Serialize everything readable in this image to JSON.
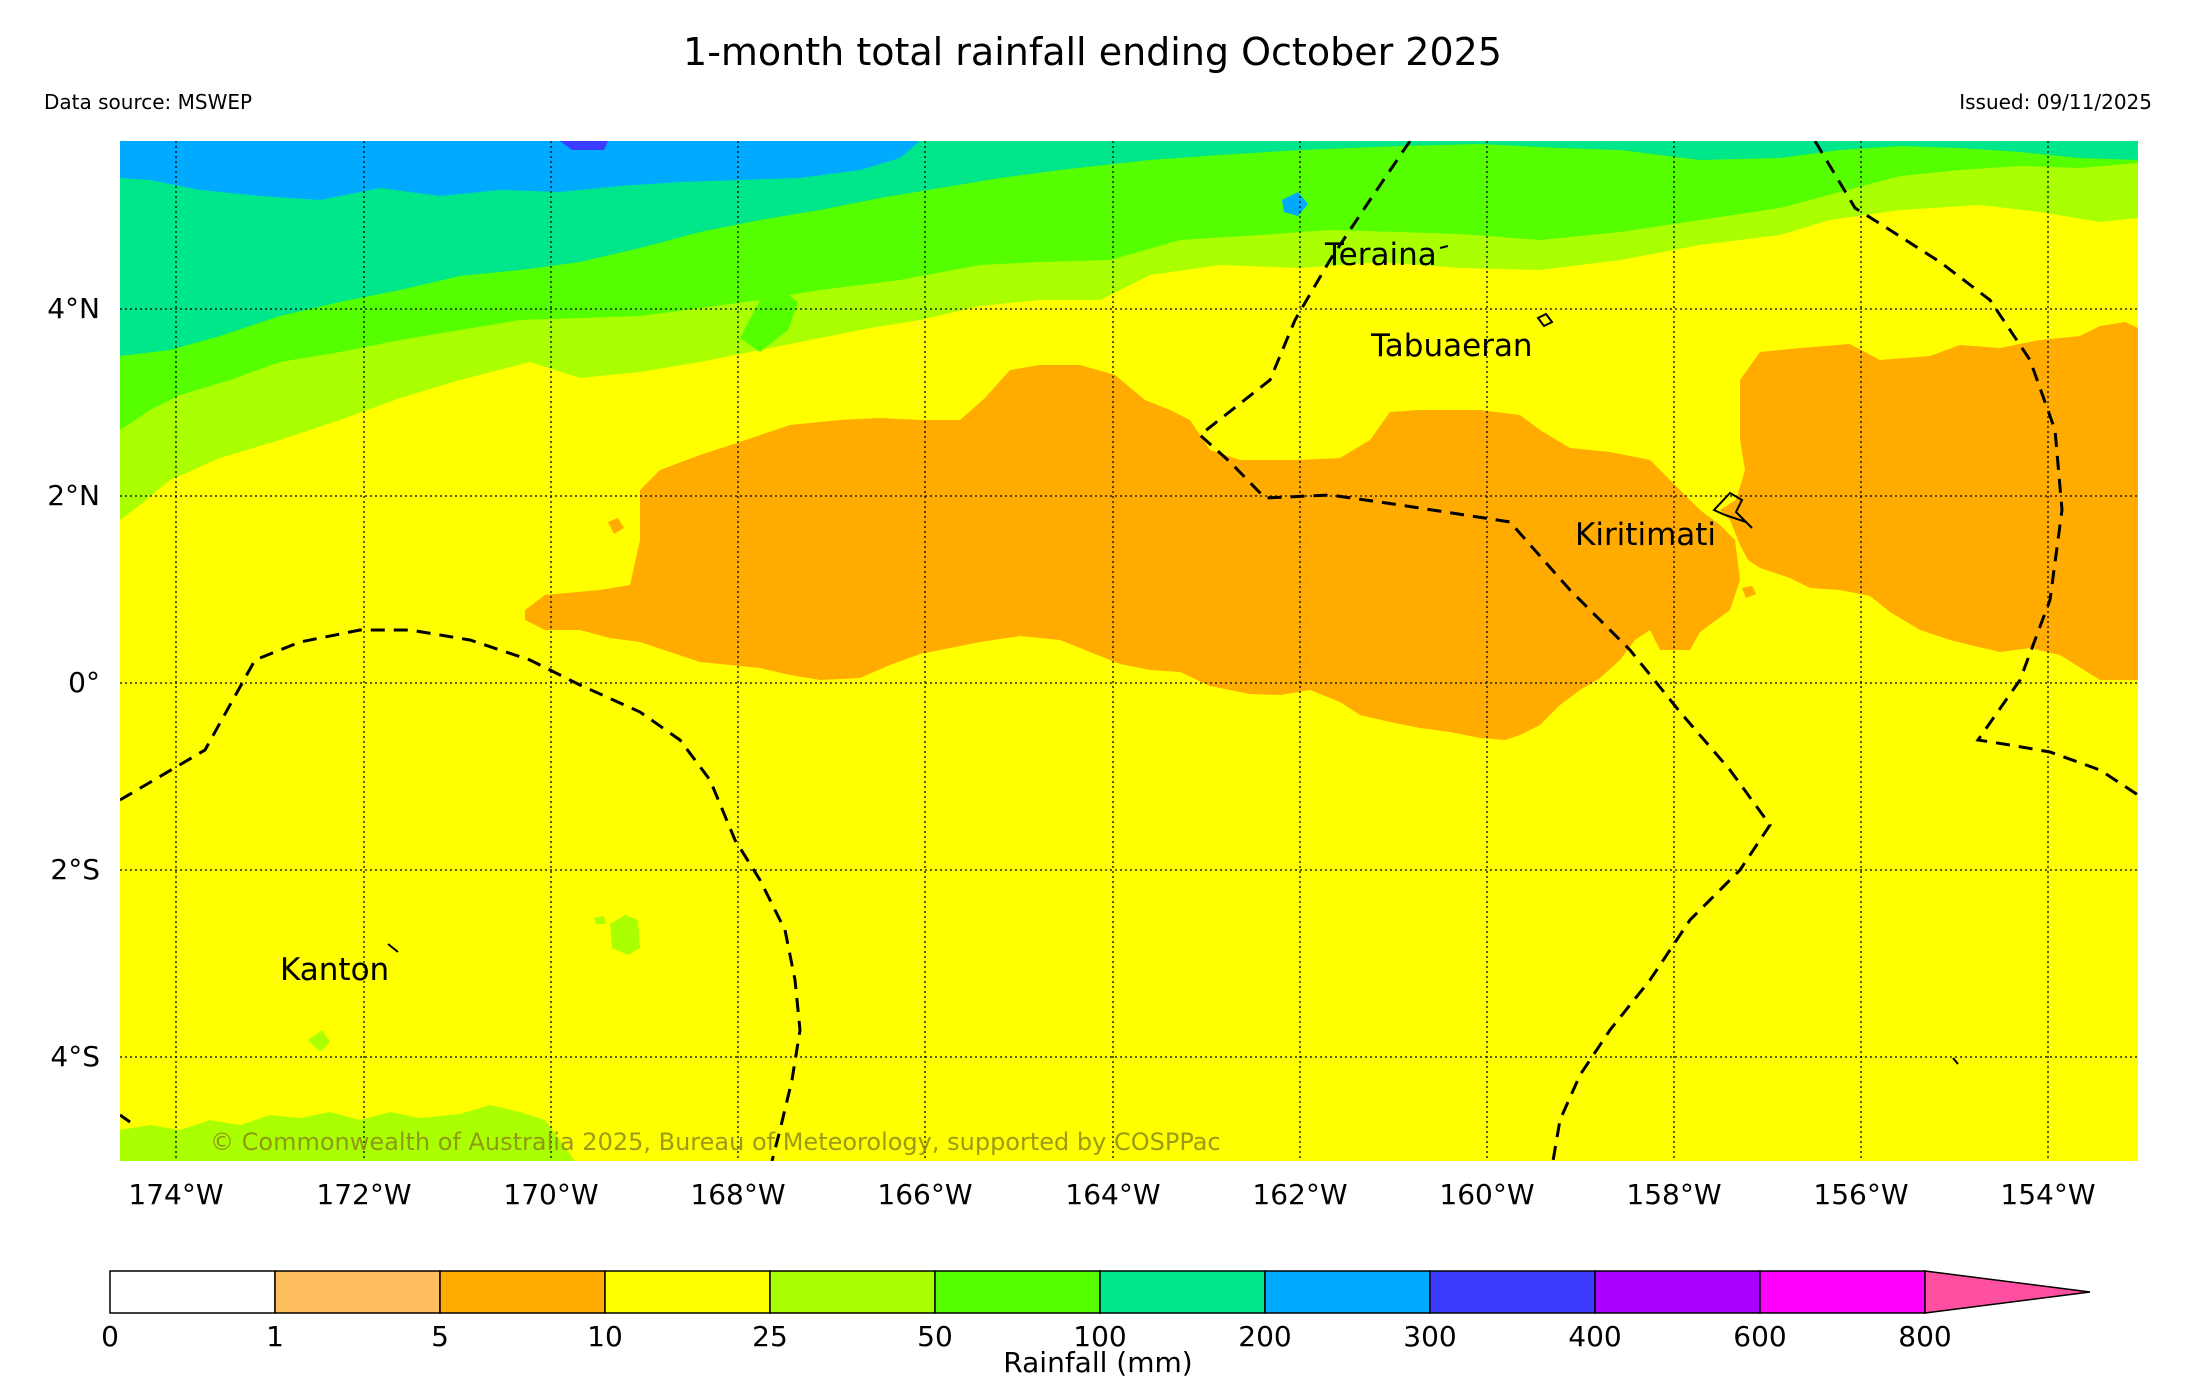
{
  "title": "1-month total rainfall ending October 2025",
  "data_source": "Data source: MSWEP",
  "issued": "Issued: 09/11/2025",
  "copyright": "© Commonwealth of Australia 2025, Bureau of Meteorology, supported by COSPPac",
  "map": {
    "lon_ticks": [
      "174°W",
      "172°W",
      "170°W",
      "168°W",
      "166°W",
      "164°W",
      "162°W",
      "160°W",
      "158°W",
      "156°W",
      "154°W"
    ],
    "lat_ticks": [
      "4°N",
      "2°N",
      "0°",
      "2°S",
      "4°S"
    ],
    "places": [
      {
        "name": "Teraina"
      },
      {
        "name": "Tabuaeran"
      },
      {
        "name": "Kiritimati"
      },
      {
        "name": "Kanton"
      }
    ]
  },
  "colorbar": {
    "title": "Rainfall (mm)",
    "bins": [
      "0",
      "1",
      "5",
      "10",
      "25",
      "50",
      "100",
      "200",
      "300",
      "400",
      "600",
      "800"
    ],
    "colors": [
      "#ffffff",
      "#ffbf5f",
      "#ffab00",
      "#ffff00",
      "#aaff00",
      "#55ff00",
      "#00e68a",
      "#00aaff",
      "#3c3cff",
      "#aa00ff",
      "#ff00ff",
      "#ff4fa0"
    ]
  },
  "palette": {
    "r5_10": "#ffab00",
    "r10_25": "#ffff00",
    "r25_50": "#aaff00",
    "r50_100": "#55ff00",
    "r100_200": "#00e68a",
    "r200_300": "#00aaff",
    "r300_400": "#3c3cff"
  }
}
